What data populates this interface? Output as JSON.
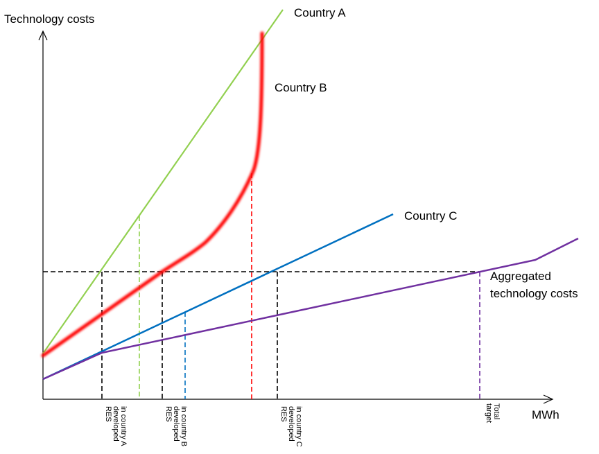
{
  "axes": {
    "y_label": "Technology costs",
    "x_label": "MWh"
  },
  "series_labels": {
    "country_a": "Country A",
    "country_b": "Country B",
    "country_c": "Country C",
    "aggregated_line1": "Aggregated",
    "aggregated_line2": "technology costs"
  },
  "x_markers": {
    "res_country_a": [
      "RES",
      "developed",
      "in country A"
    ],
    "res_country_b": [
      "RES",
      "developed",
      "in country B"
    ],
    "res_country_c": [
      "RES",
      "developed",
      "in country C"
    ],
    "total_target": [
      "Total",
      "target"
    ]
  },
  "colors": {
    "country_a": "#92d050",
    "country_b": "#ff0000",
    "country_c": "#0070c0",
    "aggregated": "#7030a0",
    "guides": "#000000"
  }
}
